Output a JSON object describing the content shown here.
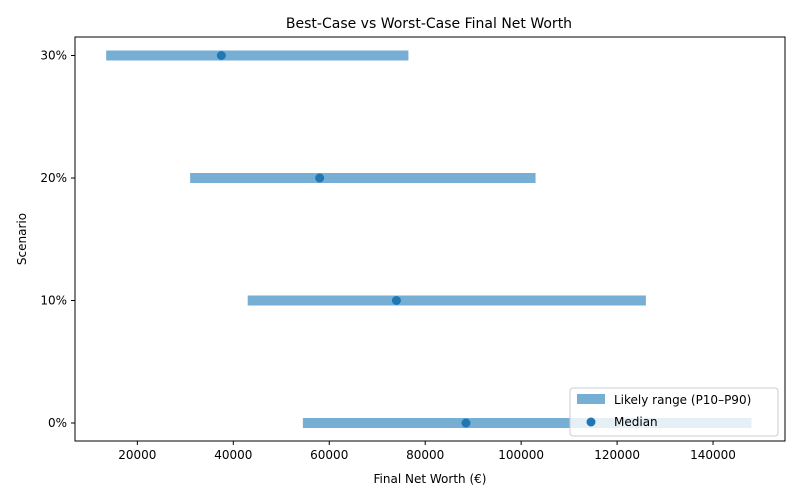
{
  "chart_data": {
    "type": "range",
    "title": "Best-Case vs Worst-Case Final Net Worth",
    "xlabel": "Final Net Worth (€)",
    "ylabel": "Scenario",
    "xlim": [
      7000,
      155000
    ],
    "x_ticks": [
      20000,
      40000,
      60000,
      80000,
      100000,
      120000,
      140000
    ],
    "categories": [
      "0%",
      "10%",
      "20%",
      "30%"
    ],
    "series": [
      {
        "name": "Likely range (P10–P90)",
        "kind": "range",
        "low": [
          54500,
          43000,
          31000,
          13500
        ],
        "high": [
          148000,
          126000,
          103000,
          76500
        ]
      },
      {
        "name": "Median",
        "kind": "point",
        "values": [
          88500,
          74000,
          58000,
          37500
        ]
      }
    ],
    "legend": "bottom-right",
    "grid": false,
    "colors": {
      "range": "#77aed3",
      "median": "#1f77b4"
    }
  }
}
